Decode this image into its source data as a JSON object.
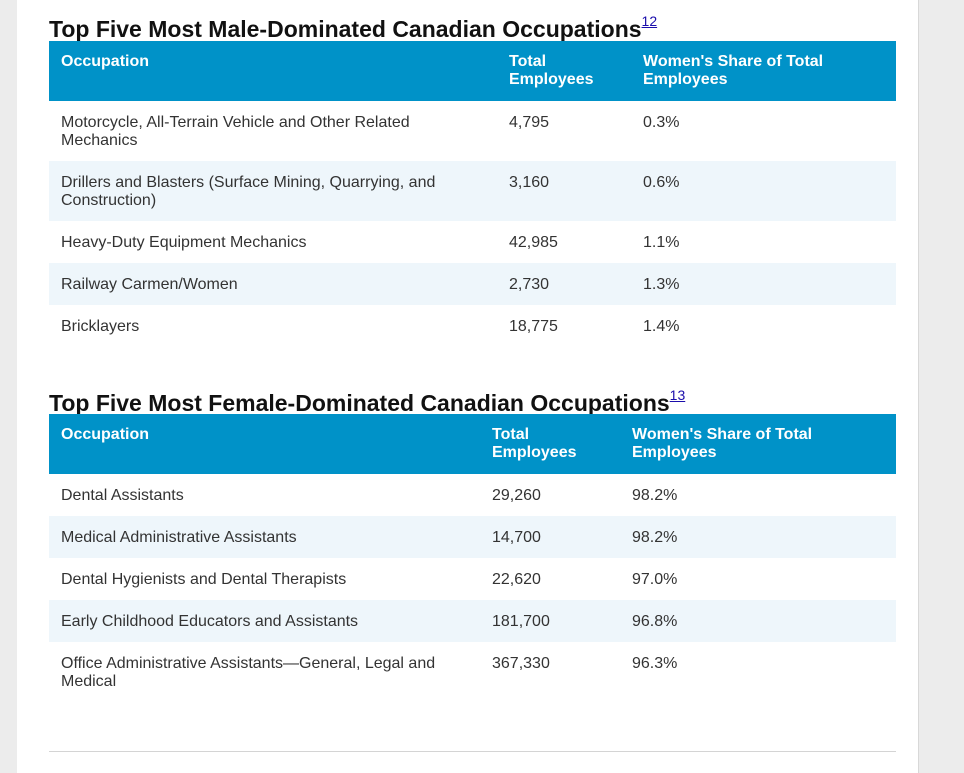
{
  "male_section": {
    "title": "Top Five Most Male-Dominated Canadian Occupations",
    "footnote": "12",
    "headers": {
      "occupation": "Occupation",
      "total": "Total Employees",
      "share": "Women's Share of Total Employees"
    },
    "rows": [
      {
        "occupation": "Motorcycle, All-Terrain Vehicle and Other Related Mechanics",
        "total": "4,795",
        "share": "0.3%"
      },
      {
        "occupation": "Drillers and Blasters (Surface Mining, Quarrying, and Construction)",
        "total": "3,160",
        "share": "0.6%"
      },
      {
        "occupation": "Heavy-Duty Equipment Mechanics",
        "total": "42,985",
        "share": "1.1%"
      },
      {
        "occupation": "Railway Carmen/Women",
        "total": "2,730",
        "share": "1.3%"
      },
      {
        "occupation": "Bricklayers",
        "total": "18,775",
        "share": "1.4%"
      }
    ]
  },
  "female_section": {
    "title": "Top Five Most Female-Dominated Canadian Occupations",
    "footnote": "13",
    "headers": {
      "occupation": "Occupation",
      "total": "Total Employees",
      "share": "Women's Share of Total Employees"
    },
    "rows": [
      {
        "occupation": "Dental Assistants",
        "total": "29,260",
        "share": "98.2%"
      },
      {
        "occupation": "Medical Administrative Assistants",
        "total": "14,700",
        "share": "98.2%"
      },
      {
        "occupation": "Dental Hygienists and Dental Therapists",
        "total": "22,620",
        "share": "97.0%"
      },
      {
        "occupation": "Early Childhood Educators and Assistants",
        "total": "181,700",
        "share": "96.8%"
      },
      {
        "occupation": "Office Administrative Assistants—General, Legal and Medical",
        "total": "367,330",
        "share": "96.3%"
      }
    ]
  },
  "colors": {
    "header_bg": "#0092c8",
    "stripe_bg": "#eef6fb",
    "link": "#1a0dab"
  }
}
